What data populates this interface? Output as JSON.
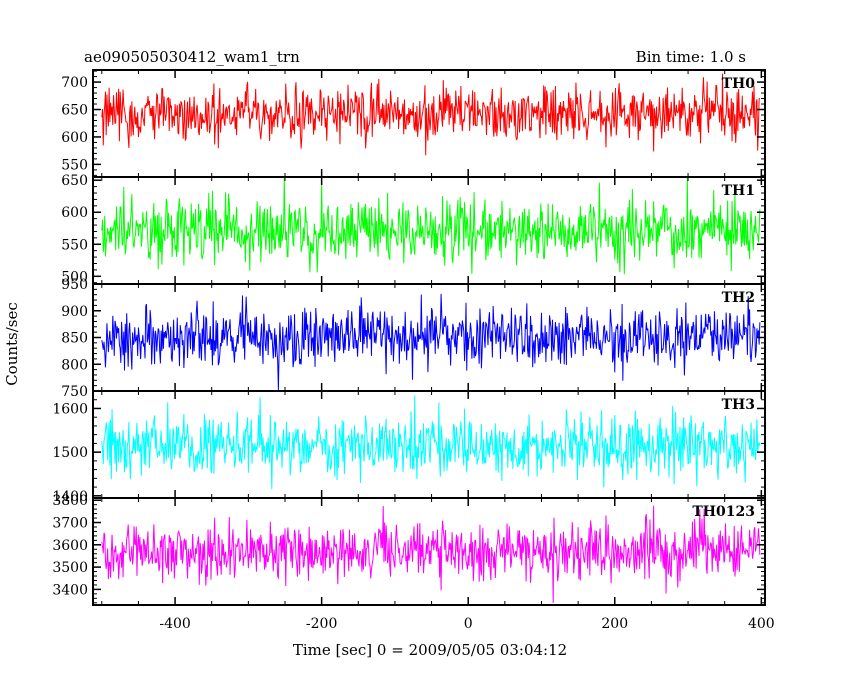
{
  "title_left": "ae090505030412_wam1_trn",
  "title_right": "Bin time: 1.0 s",
  "chart_data": {
    "type": "line",
    "title": "ae090505030412_wam1_trn",
    "subtitle": "Bin time: 1.0 s",
    "xlabel": "Time [sec] 0 = 2009/05/05 03:04:12",
    "ylabel": "Counts/sec",
    "xlim": [
      -512,
      405
    ],
    "x_range_data": [
      -500,
      398
    ],
    "xticks": [
      -400,
      -200,
      0,
      200,
      400
    ],
    "grid": false,
    "panels": [
      {
        "name": "TH0",
        "color": "#ff0000",
        "ylim": [
          527,
          722
        ],
        "yticks": [
          550,
          600,
          650,
          700
        ],
        "mean": 641,
        "sigma": 25,
        "min": 560,
        "max": 722
      },
      {
        "name": "TH1",
        "color": "#00ff00",
        "ylim": [
          488,
          655
        ],
        "yticks": [
          500,
          550,
          600,
          650
        ],
        "mean": 571,
        "sigma": 24,
        "min": 488,
        "max": 655
      },
      {
        "name": "TH2",
        "color": "#0000ff",
        "ylim": [
          750,
          950
        ],
        "yticks": [
          750,
          800,
          850,
          900,
          950
        ],
        "mean": 850,
        "sigma": 28,
        "min": 752,
        "max": 950
      },
      {
        "name": "TH3",
        "color": "#00ffff",
        "ylim": [
          1395,
          1640
        ],
        "yticks": [
          1400,
          1500,
          1600
        ],
        "mean": 1515,
        "sigma": 35,
        "min": 1395,
        "max": 1640
      },
      {
        "name": "TH0123",
        "color": "#ff00ff",
        "ylim": [
          3330,
          3810
        ],
        "yticks": [
          3400,
          3500,
          3600,
          3700,
          3800
        ],
        "mean": 3570,
        "sigma": 65,
        "min": 3330,
        "max": 3810
      }
    ]
  }
}
